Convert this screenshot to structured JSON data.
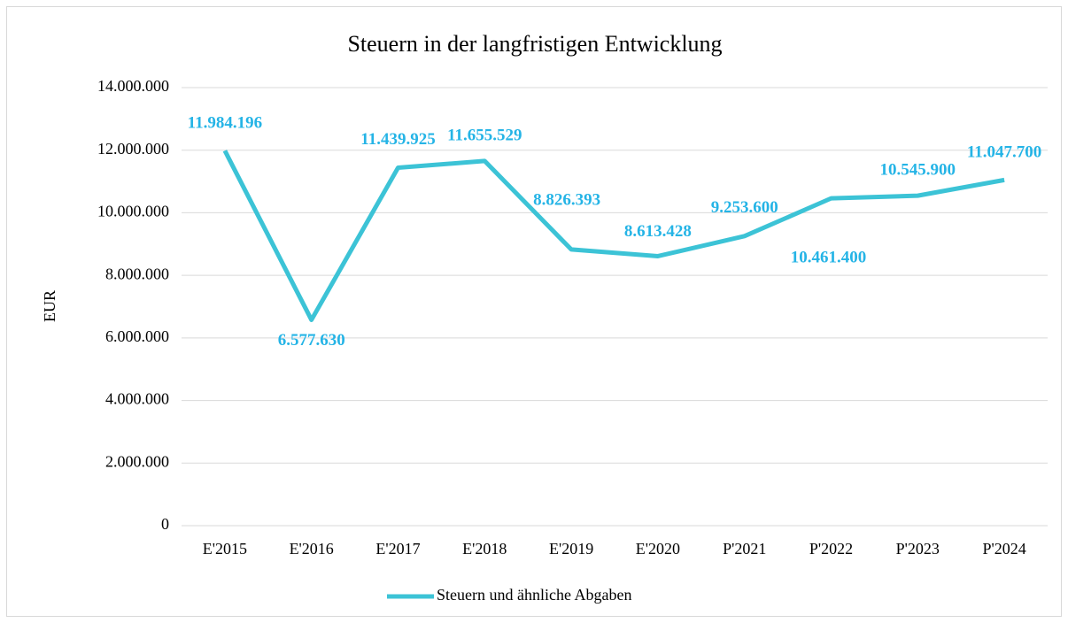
{
  "chart_data": {
    "type": "line",
    "title": "Steuern in der langfristigen Entwicklung",
    "y_label": "EUR",
    "categories": [
      "E'2015",
      "E'2016",
      "E'2017",
      "E'2018",
      "E'2019",
      "E'2020",
      "P'2021",
      "P'2022",
      "P'2023",
      "P'2024"
    ],
    "series": [
      {
        "name": "Steuern und ähnliche Abgaben",
        "color": "#3cc3d6",
        "label_color": "#25b4e6",
        "values": [
          11984196,
          6577630,
          11439925,
          11655529,
          8826393,
          8613428,
          9253600,
          10461400,
          10545900,
          11047700
        ],
        "value_labels": [
          "11.984.196",
          "6.577.630",
          "11.439.925",
          "11.655.529",
          "8.826.393",
          "8.613.428",
          "9.253.600",
          "10.461.400",
          "10.545.900",
          "11.047.700"
        ]
      }
    ],
    "ylim": [
      0,
      14000000
    ],
    "yticks": [
      0,
      {
        "value": 2000000,
        "label": "2.000.000"
      },
      {
        "value": 4000000,
        "label": "4.000.000"
      },
      {
        "value": 6000000,
        "label": "6.000.000"
      },
      {
        "value": 8000000,
        "label": "8.000.000"
      },
      {
        "value": 10000000,
        "label": "10.000.000"
      },
      {
        "value": 12000000,
        "label": "12.000.000"
      },
      {
        "value": 14000000,
        "label": "14.000.000"
      }
    ],
    "grid": true,
    "legend": "bottom"
  }
}
